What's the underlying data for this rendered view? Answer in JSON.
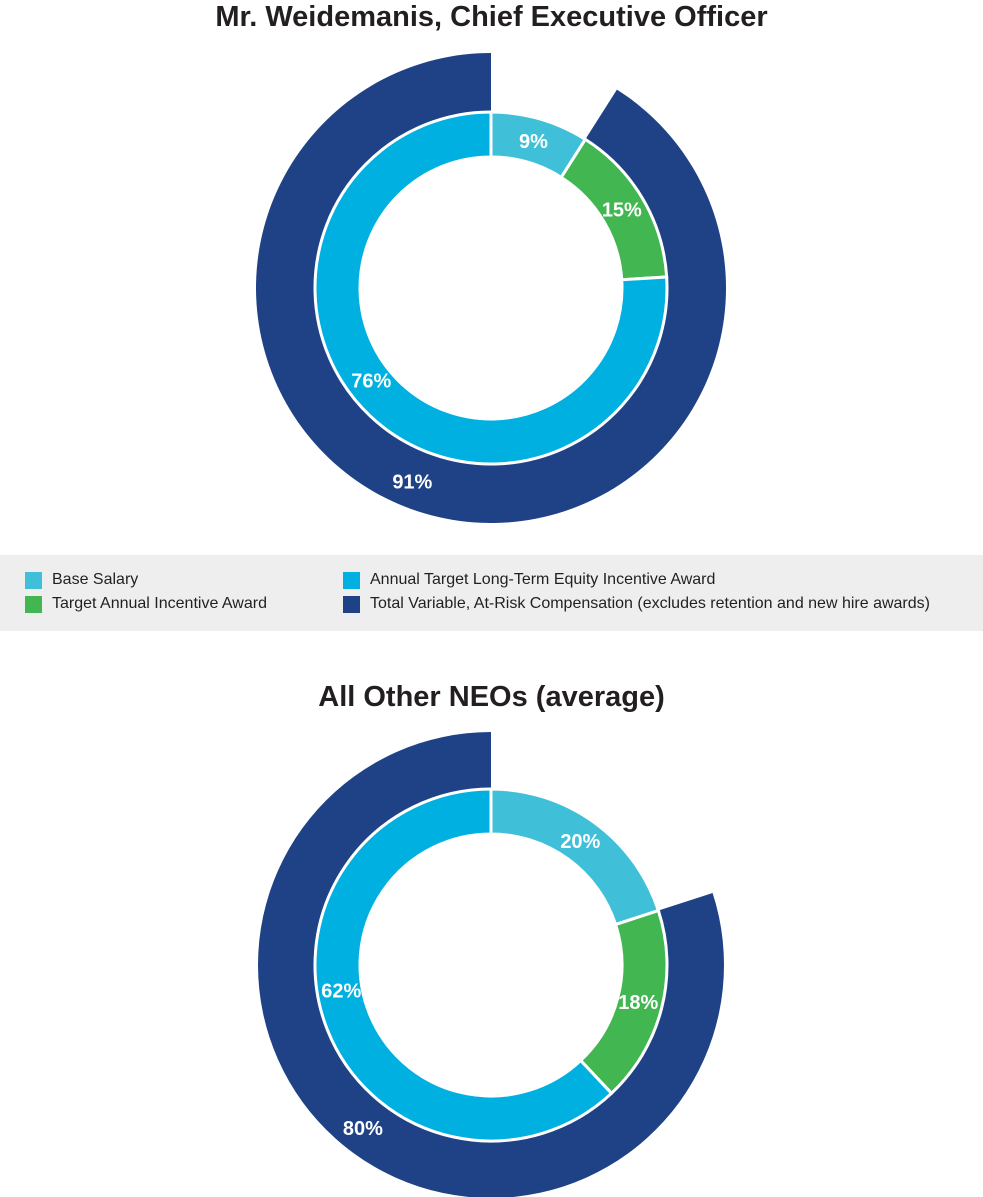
{
  "colors": {
    "base_salary": "#40c0d8",
    "target_annual_incentive": "#42b650",
    "long_term_equity": "#00b0e0",
    "total_variable": "#1f4287",
    "legend_background": "#eeeeef",
    "label_text": "#ffffff"
  },
  "legend": {
    "base_salary": "Base Salary",
    "target_annual_incentive": "Target Annual Incentive Award",
    "long_term_equity": "Annual Target Long-Term Equity Incentive Award",
    "total_variable": "Total Variable, At-Risk Compensation (excludes retention and new hire awards)"
  },
  "chart_data": [
    {
      "type": "pie",
      "title": "Mr. Weidemanis, Chief Executive Officer",
      "inner_ring": [
        {
          "name": "Base Salary",
          "value": 9,
          "label": "9%"
        },
        {
          "name": "Target Annual Incentive Award",
          "value": 15,
          "label": "15%"
        },
        {
          "name": "Annual Target Long-Term Equity Incentive Award",
          "value": 76,
          "label": "76%"
        }
      ],
      "outer_ring": [
        {
          "name": "Total Variable, At-Risk Compensation (excludes retention and new hire awards)",
          "value": 91,
          "label": "91%"
        }
      ]
    },
    {
      "type": "pie",
      "title": "All Other NEOs (average)",
      "inner_ring": [
        {
          "name": "Base Salary",
          "value": 20,
          "label": "20%"
        },
        {
          "name": "Target Annual Incentive Award",
          "value": 18,
          "label": "18%"
        },
        {
          "name": "Annual Target Long-Term Equity Incentive Award",
          "value": 62,
          "label": "62%"
        }
      ],
      "outer_ring": [
        {
          "name": "Total Variable, At-Risk Compensation (excludes retention and new hire awards)",
          "value": 80,
          "label": "80%"
        }
      ]
    }
  ]
}
